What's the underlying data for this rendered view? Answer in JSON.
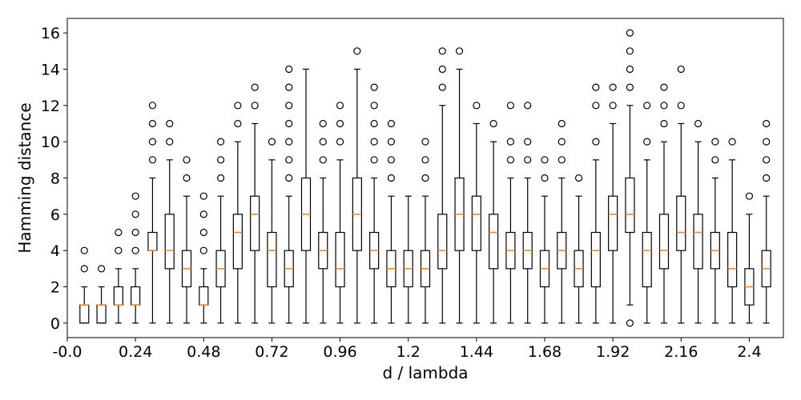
{
  "chart_data": {
    "type": "box",
    "title": "",
    "xlabel": "d / lambda",
    "ylabel": "Hamming distance",
    "xlim": [
      0,
      2.52
    ],
    "ylim": [
      -0.8,
      16.8
    ],
    "x_ticks": [
      {
        "value": 0.0,
        "label": "-0.0"
      },
      {
        "value": 0.24,
        "label": "0.24"
      },
      {
        "value": 0.48,
        "label": "0.48"
      },
      {
        "value": 0.72,
        "label": "0.72"
      },
      {
        "value": 0.96,
        "label": "0.96"
      },
      {
        "value": 1.2,
        "label": "1.2"
      },
      {
        "value": 1.44,
        "label": "1.44"
      },
      {
        "value": 1.68,
        "label": "1.68"
      },
      {
        "value": 1.92,
        "label": "1.92"
      },
      {
        "value": 2.16,
        "label": "2.16"
      },
      {
        "value": 2.4,
        "label": "2.4"
      }
    ],
    "y_ticks": [
      0,
      2,
      4,
      6,
      8,
      10,
      12,
      14,
      16
    ],
    "colors": {
      "box": "#000000",
      "median": "#ff7f0e",
      "flier": "#000000"
    },
    "boxes": [
      {
        "x": 0.06,
        "whislo": 0,
        "q1": 0,
        "med": 1,
        "q3": 1,
        "whishi": 2,
        "fliers": [
          3,
          4
        ]
      },
      {
        "x": 0.12,
        "whislo": 0,
        "q1": 0,
        "med": 1,
        "q3": 1,
        "whishi": 2,
        "fliers": [
          3
        ]
      },
      {
        "x": 0.18,
        "whislo": 0,
        "q1": 1,
        "med": 1,
        "q3": 2,
        "whishi": 3,
        "fliers": [
          4,
          5
        ]
      },
      {
        "x": 0.24,
        "whislo": 0,
        "q1": 1,
        "med": 1,
        "q3": 2,
        "whishi": 3,
        "fliers": [
          4,
          5,
          6,
          7
        ]
      },
      {
        "x": 0.3,
        "whislo": 0,
        "q1": 4,
        "med": 4,
        "q3": 5,
        "whishi": 8,
        "fliers": [
          9,
          10,
          11,
          12
        ]
      },
      {
        "x": 0.36,
        "whislo": 0,
        "q1": 3,
        "med": 4,
        "q3": 6,
        "whishi": 9,
        "fliers": [
          10,
          11
        ]
      },
      {
        "x": 0.42,
        "whislo": 0,
        "q1": 2,
        "med": 3,
        "q3": 4,
        "whishi": 7,
        "fliers": [
          8,
          9
        ]
      },
      {
        "x": 0.48,
        "whislo": 0,
        "q1": 1,
        "med": 1,
        "q3": 2,
        "whishi": 3,
        "fliers": [
          4,
          5,
          6,
          7
        ]
      },
      {
        "x": 0.54,
        "whislo": 0,
        "q1": 2,
        "med": 3,
        "q3": 4,
        "whishi": 7,
        "fliers": [
          8,
          9,
          10
        ]
      },
      {
        "x": 0.6,
        "whislo": 0,
        "q1": 3,
        "med": 5,
        "q3": 6,
        "whishi": 10,
        "fliers": [
          11,
          12
        ]
      },
      {
        "x": 0.66,
        "whislo": 0,
        "q1": 4,
        "med": 6,
        "q3": 7,
        "whishi": 11,
        "fliers": [
          12,
          13
        ]
      },
      {
        "x": 0.72,
        "whislo": 0,
        "q1": 2,
        "med": 4,
        "q3": 5,
        "whishi": 9,
        "fliers": [
          10
        ]
      },
      {
        "x": 0.78,
        "whislo": 0,
        "q1": 2,
        "med": 3,
        "q3": 4,
        "whishi": 7,
        "fliers": [
          8,
          9,
          10,
          11,
          12,
          13,
          14
        ]
      },
      {
        "x": 0.84,
        "whislo": 0,
        "q1": 4,
        "med": 6,
        "q3": 8,
        "whishi": 14,
        "fliers": []
      },
      {
        "x": 0.9,
        "whislo": 0,
        "q1": 3,
        "med": 4,
        "q3": 5,
        "whishi": 8,
        "fliers": [
          9,
          10,
          11
        ]
      },
      {
        "x": 0.96,
        "whislo": 0,
        "q1": 2,
        "med": 3,
        "q3": 5,
        "whishi": 9,
        "fliers": [
          10,
          11,
          12
        ]
      },
      {
        "x": 1.02,
        "whislo": 0,
        "q1": 4,
        "med": 6,
        "q3": 8,
        "whishi": 14,
        "fliers": [
          15
        ]
      },
      {
        "x": 1.08,
        "whislo": 0,
        "q1": 3,
        "med": 4,
        "q3": 5,
        "whishi": 8,
        "fliers": [
          9,
          10,
          11,
          12,
          13
        ]
      },
      {
        "x": 1.14,
        "whislo": 0,
        "q1": 2,
        "med": 3,
        "q3": 4,
        "whishi": 7,
        "fliers": [
          8,
          9,
          10,
          11
        ]
      },
      {
        "x": 1.2,
        "whislo": 0,
        "q1": 2,
        "med": 3,
        "q3": 4,
        "whishi": 7,
        "fliers": []
      },
      {
        "x": 1.26,
        "whislo": 0,
        "q1": 2,
        "med": 3,
        "q3": 4,
        "whishi": 7,
        "fliers": [
          8,
          9,
          10
        ]
      },
      {
        "x": 1.32,
        "whislo": 0,
        "q1": 3,
        "med": 4,
        "q3": 6,
        "whishi": 12,
        "fliers": [
          13,
          14,
          15
        ]
      },
      {
        "x": 1.38,
        "whislo": 0,
        "q1": 4,
        "med": 6,
        "q3": 8,
        "whishi": 14,
        "fliers": [
          15
        ]
      },
      {
        "x": 1.44,
        "whislo": 0,
        "q1": 4,
        "med": 6,
        "q3": 7,
        "whishi": 11,
        "fliers": [
          12
        ]
      },
      {
        "x": 1.5,
        "whislo": 0,
        "q1": 3,
        "med": 5,
        "q3": 6,
        "whishi": 10,
        "fliers": [
          11
        ]
      },
      {
        "x": 1.56,
        "whislo": 0,
        "q1": 3,
        "med": 4,
        "q3": 5,
        "whishi": 8,
        "fliers": [
          9,
          10,
          12
        ]
      },
      {
        "x": 1.62,
        "whislo": 0,
        "q1": 3,
        "med": 4,
        "q3": 5,
        "whishi": 8,
        "fliers": [
          9,
          10,
          12
        ]
      },
      {
        "x": 1.68,
        "whislo": 0,
        "q1": 2,
        "med": 3,
        "q3": 4,
        "whishi": 7,
        "fliers": [
          8,
          9
        ]
      },
      {
        "x": 1.74,
        "whislo": 0,
        "q1": 3,
        "med": 4,
        "q3": 5,
        "whishi": 8,
        "fliers": [
          9,
          10,
          11
        ]
      },
      {
        "x": 1.8,
        "whislo": 0,
        "q1": 2,
        "med": 3,
        "q3": 4,
        "whishi": 7,
        "fliers": [
          8
        ]
      },
      {
        "x": 1.86,
        "whislo": 0,
        "q1": 2,
        "med": 4,
        "q3": 5,
        "whishi": 9,
        "fliers": [
          10,
          12,
          13
        ]
      },
      {
        "x": 1.92,
        "whislo": 0,
        "q1": 4,
        "med": 6,
        "q3": 7,
        "whishi": 11,
        "fliers": [
          12,
          13
        ]
      },
      {
        "x": 1.98,
        "whislo": 1,
        "q1": 5,
        "med": 6,
        "q3": 8,
        "whishi": 12,
        "fliers": [
          0,
          13,
          14,
          15,
          16
        ]
      },
      {
        "x": 2.04,
        "whislo": 0,
        "q1": 2,
        "med": 4,
        "q3": 5,
        "whishi": 9,
        "fliers": [
          10,
          12
        ]
      },
      {
        "x": 2.1,
        "whislo": 0,
        "q1": 3,
        "med": 4,
        "q3": 6,
        "whishi": 10,
        "fliers": [
          11,
          12,
          13
        ]
      },
      {
        "x": 2.16,
        "whislo": 0,
        "q1": 4,
        "med": 5,
        "q3": 7,
        "whishi": 11,
        "fliers": [
          12,
          14
        ]
      },
      {
        "x": 2.22,
        "whislo": 0,
        "q1": 3,
        "med": 5,
        "q3": 6,
        "whishi": 10,
        "fliers": [
          11
        ]
      },
      {
        "x": 2.28,
        "whislo": 0,
        "q1": 3,
        "med": 4,
        "q3": 5,
        "whishi": 8,
        "fliers": [
          9,
          10
        ]
      },
      {
        "x": 2.34,
        "whislo": 0,
        "q1": 2,
        "med": 3,
        "q3": 5,
        "whishi": 9,
        "fliers": [
          10
        ]
      },
      {
        "x": 2.4,
        "whislo": 0,
        "q1": 1,
        "med": 2,
        "q3": 3,
        "whishi": 6,
        "fliers": [
          7
        ]
      },
      {
        "x": 2.46,
        "whislo": 0,
        "q1": 2,
        "med": 3,
        "q3": 4,
        "whishi": 7,
        "fliers": [
          8,
          9,
          10,
          11
        ]
      }
    ]
  }
}
